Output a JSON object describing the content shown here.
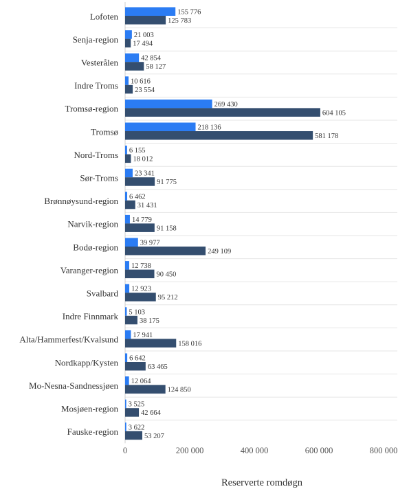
{
  "chart_data": {
    "type": "bar",
    "orientation": "horizontal",
    "categories": [
      "Lofoten",
      "Senja-region",
      "Vesterålen",
      "Indre Troms",
      "Tromsø-region",
      "Tromsø",
      "Nord-Troms",
      "Sør-Troms",
      "Brønnøysund-region",
      "Narvik-region",
      "Bodø-region",
      "Varanger-region",
      "Svalbard",
      "Indre Finnmark",
      "Alta/Hammerfest/Kvalsund",
      "Nordkapp/Kysten",
      "Mo-Nesna-Sandnessjøen",
      "Mosjøen-region",
      "Fauske-region"
    ],
    "series": [
      {
        "color": "#2b7cf3",
        "values": [
          155776,
          21003,
          42854,
          10616,
          269430,
          218136,
          6155,
          23341,
          6462,
          14779,
          39977,
          12738,
          12923,
          5103,
          17941,
          6642,
          12064,
          3525,
          3622
        ],
        "labels": [
          "155 776",
          "21 003",
          "42 854",
          "10 616",
          "269 430",
          "218 136",
          "6 155",
          "23 341",
          "6 462",
          "14 779",
          "39 977",
          "12 738",
          "12 923",
          "5 103",
          "17 941",
          "6 642",
          "12 064",
          "3 525",
          "3 622"
        ]
      },
      {
        "color": "#344e6f",
        "values": [
          125783,
          17494,
          58127,
          23554,
          604105,
          581178,
          18012,
          91775,
          31431,
          91158,
          249109,
          90450,
          95212,
          38175,
          158016,
          63465,
          124850,
          42664,
          53207
        ],
        "labels": [
          "125 783",
          "17 494",
          "58 127",
          "23 554",
          "604 105",
          "581 178",
          "18 012",
          "91 775",
          "31 431",
          "91 158",
          "249 109",
          "90 450",
          "95 212",
          "38 175",
          "158 016",
          "63 465",
          "124 850",
          "42 664",
          "53 207"
        ]
      }
    ],
    "xlabel": "Reserverte romdøgn",
    "xlim": [
      0,
      800000
    ],
    "xticks": [
      0,
      200000,
      400000,
      600000,
      800000
    ],
    "xtick_labels": [
      "0",
      "200 000",
      "400 000",
      "600 000",
      "800 000"
    ],
    "grid": true,
    "legend": "none"
  }
}
